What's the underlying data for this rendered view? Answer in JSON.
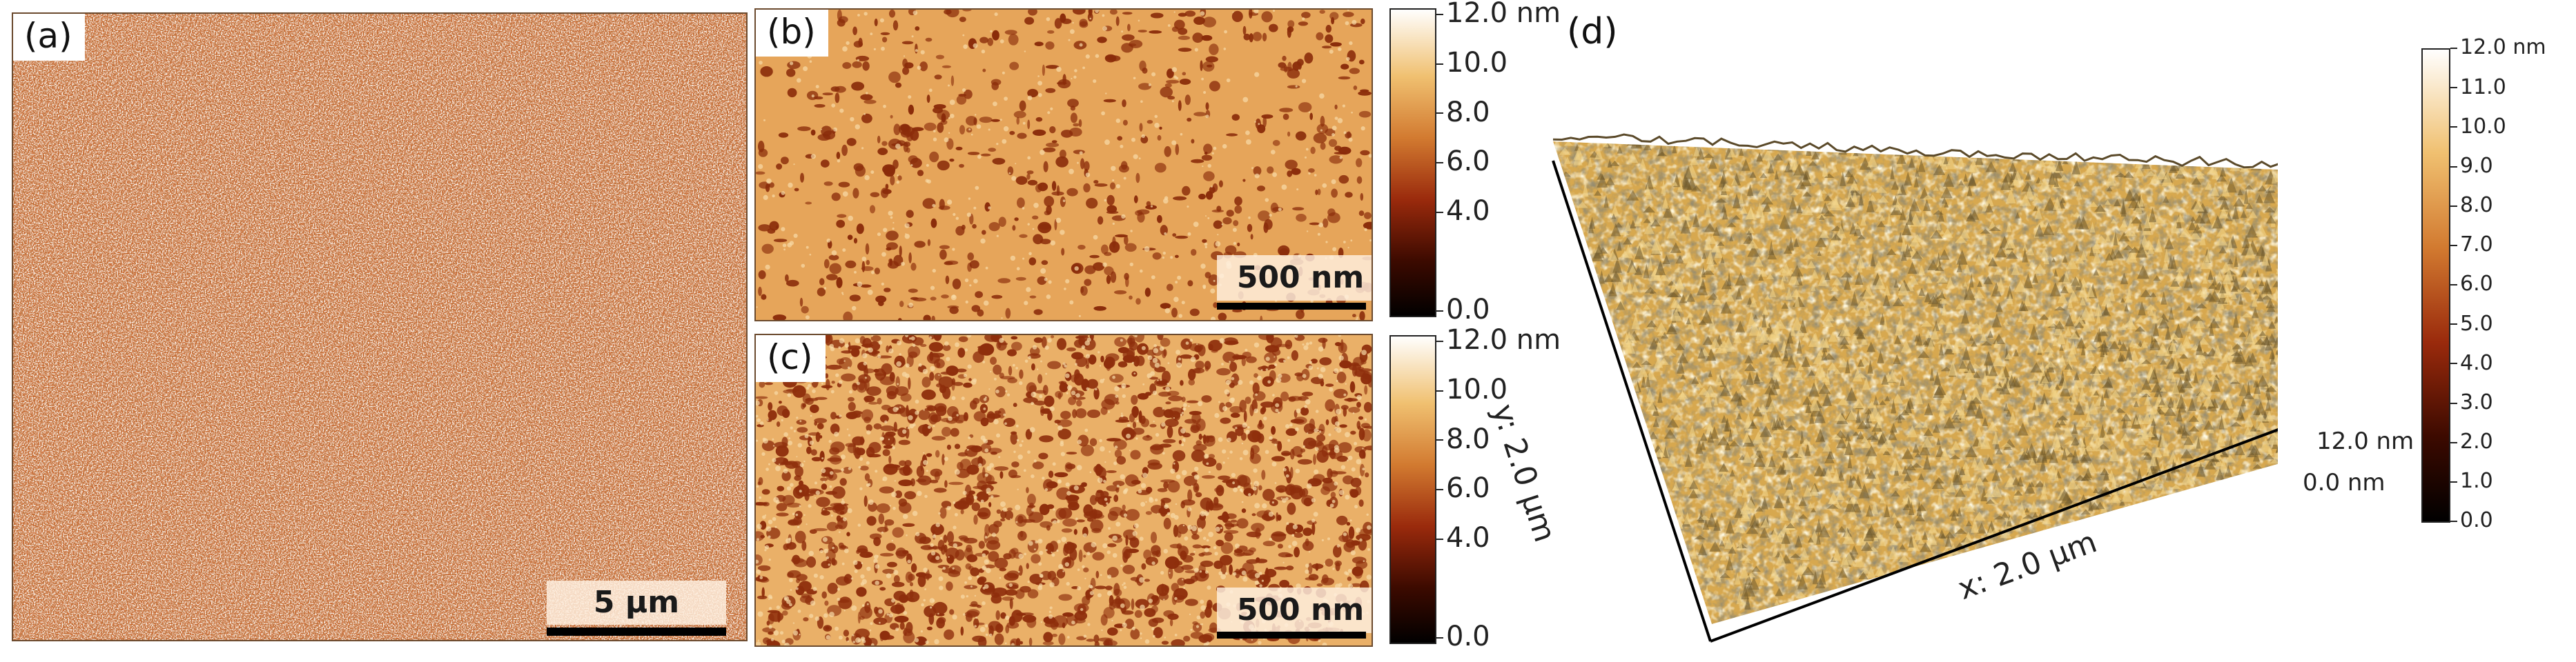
{
  "panels": {
    "a": {
      "label": "(a)",
      "scale_bar": "5 µm"
    },
    "b": {
      "label": "(b)",
      "scale_bar": "500 nm"
    },
    "c": {
      "label": "(c)",
      "scale_bar": "500 nm"
    },
    "d": {
      "label": "(d)",
      "x_axis": "x: 2.0 µm",
      "y_axis": "y: 2.0 µm",
      "z_top": "12.0 nm",
      "z_bottom": "0.0 nm"
    }
  },
  "colorbar_bc": {
    "ticks": [
      "12.0 nm",
      "10.0",
      "8.0",
      "6.0",
      "4.0",
      "0.0"
    ]
  },
  "colorbar_d": {
    "ticks": [
      "12.0 nm",
      "11.0",
      "10.0",
      "9.0",
      "8.0",
      "7.0",
      "6.0",
      "5.0",
      "4.0",
      "3.0",
      "2.0",
      "1.0",
      "0.0"
    ]
  },
  "colors": {
    "panel_a": "#c8652c",
    "flat_surface": "#e8a85c",
    "pits": "#7a2a0a",
    "colorbar_stops": [
      "#000000",
      "#5a1200",
      "#a03010",
      "#d07830",
      "#f0c070",
      "#ffffff"
    ]
  }
}
